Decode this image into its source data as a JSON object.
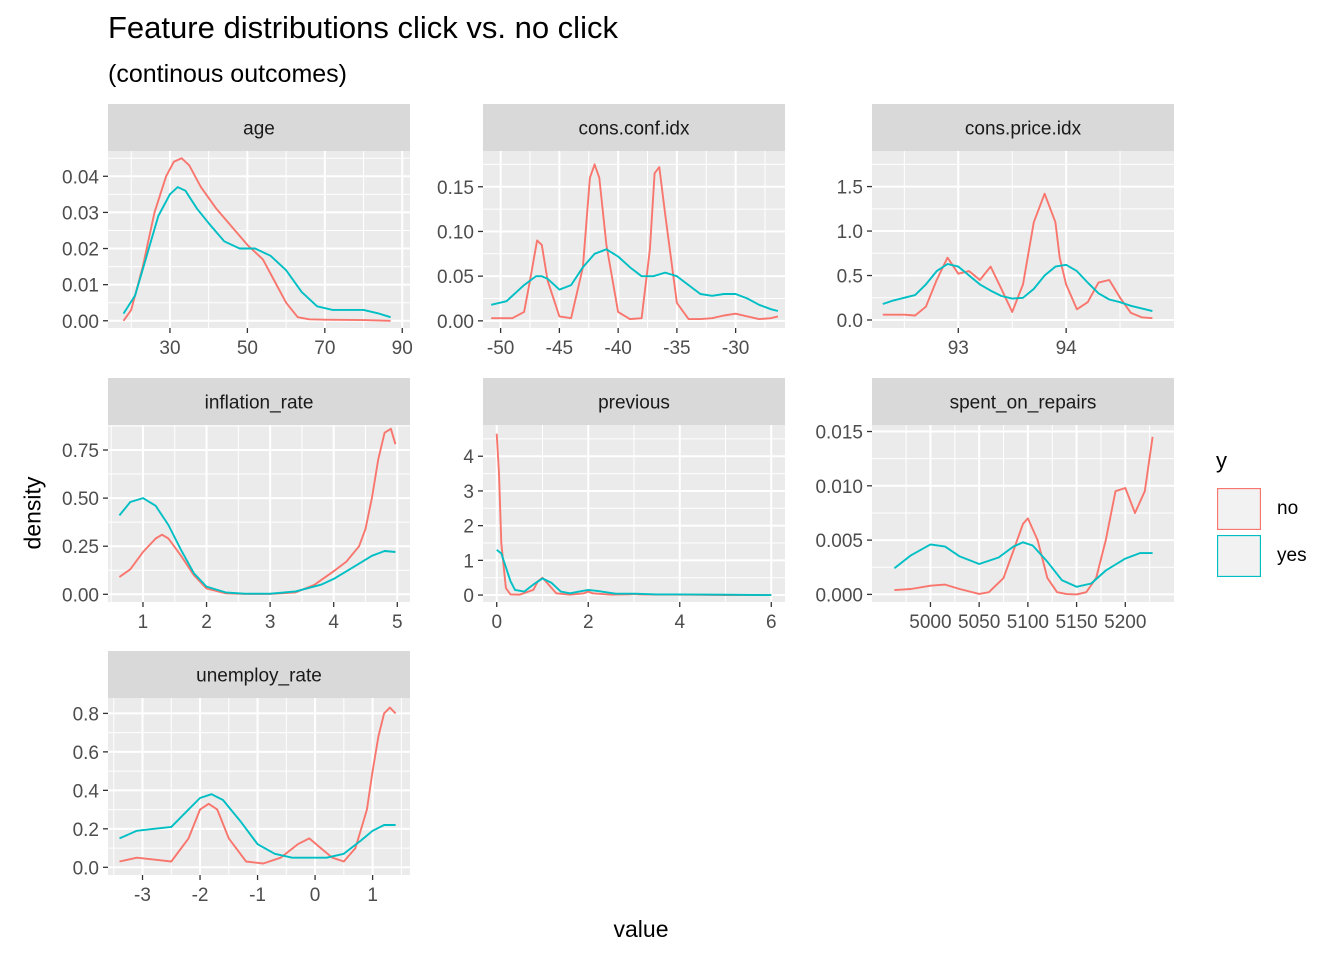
{
  "title": "Feature distributions click vs. no click",
  "subtitle": "(continous outcomes)",
  "chart_data": {
    "type": "line",
    "xlabel": "value",
    "ylabel": "density",
    "legend": {
      "title": "y",
      "position": "right",
      "entries": [
        {
          "name": "no",
          "color": "#F8766D"
        },
        {
          "name": "yes",
          "color": "#00BFC4"
        }
      ]
    },
    "grid": true,
    "facets": [
      {
        "name": "age",
        "xlim": [
          14,
          92
        ],
        "ylim": [
          -0.002,
          0.047
        ],
        "x_ticks": [
          30,
          50,
          70,
          90
        ],
        "x_tick_labels": [
          "30",
          "50",
          "70",
          "90"
        ],
        "y_ticks": [
          0,
          0.01,
          0.02,
          0.03,
          0.04
        ],
        "y_tick_labels": [
          "0.00",
          "0.01",
          "0.02",
          "0.03",
          "0.04"
        ],
        "series": [
          {
            "name": "no",
            "x": [
              18,
              20,
              23,
              26,
              29,
              31,
              33,
              35,
              38,
              42,
              46,
              50,
              54,
              57,
              60,
              63,
              66,
              70,
              80,
              87
            ],
            "y": [
              0.0,
              0.003,
              0.015,
              0.03,
              0.04,
              0.044,
              0.045,
              0.043,
              0.037,
              0.031,
              0.026,
              0.021,
              0.017,
              0.011,
              0.005,
              0.001,
              0.0004,
              0.0003,
              0.0002,
              0.0
            ]
          },
          {
            "name": "yes",
            "x": [
              18,
              21,
              24,
              27,
              30,
              32,
              34,
              37,
              40,
              44,
              48,
              52,
              56,
              60,
              64,
              68,
              72,
              76,
              80,
              84,
              87
            ],
            "y": [
              0.002,
              0.007,
              0.018,
              0.029,
              0.035,
              0.037,
              0.036,
              0.031,
              0.027,
              0.022,
              0.02,
              0.02,
              0.018,
              0.014,
              0.008,
              0.004,
              0.003,
              0.003,
              0.003,
              0.002,
              0.001
            ]
          }
        ]
      },
      {
        "name": "cons.conf.idx",
        "xlim": [
          -51.5,
          -25.8
        ],
        "ylim": [
          -0.008,
          0.19
        ],
        "x_ticks": [
          -50,
          -45,
          -40,
          -35,
          -30
        ],
        "x_tick_labels": [
          "-50",
          "-45",
          "-40",
          "-35",
          "-30"
        ],
        "y_ticks": [
          0,
          0.05,
          0.1,
          0.15
        ],
        "y_tick_labels": [
          "0.00",
          "0.05",
          "0.10",
          "0.15"
        ],
        "series": [
          {
            "name": "no",
            "x": [
              -50.8,
              -49,
              -48,
              -47.5,
              -46.9,
              -46.5,
              -46,
              -45,
              -44,
              -43,
              -42.4,
              -42,
              -41.6,
              -41,
              -40,
              -39,
              -38,
              -37.3,
              -36.9,
              -36.5,
              -36,
              -35,
              -34,
              -33,
              -32,
              -31,
              -30,
              -29,
              -28,
              -27,
              -26.4
            ],
            "y": [
              0.003,
              0.003,
              0.01,
              0.045,
              0.09,
              0.085,
              0.045,
              0.005,
              0.003,
              0.06,
              0.16,
              0.175,
              0.16,
              0.085,
              0.01,
              0.002,
              0.003,
              0.08,
              0.165,
              0.172,
              0.12,
              0.02,
              0.002,
              0.002,
              0.003,
              0.006,
              0.008,
              0.005,
              0.002,
              0.003,
              0.005
            ]
          },
          {
            "name": "yes",
            "x": [
              -50.8,
              -49.5,
              -48,
              -47,
              -46.5,
              -46,
              -45,
              -44,
              -43,
              -42,
              -41,
              -40,
              -39,
              -38,
              -37,
              -36,
              -35,
              -34,
              -33,
              -32,
              -31,
              -30,
              -29,
              -28,
              -27,
              -26.4
            ],
            "y": [
              0.018,
              0.022,
              0.04,
              0.05,
              0.05,
              0.047,
              0.035,
              0.04,
              0.06,
              0.075,
              0.08,
              0.072,
              0.06,
              0.05,
              0.05,
              0.054,
              0.05,
              0.04,
              0.03,
              0.028,
              0.03,
              0.03,
              0.025,
              0.018,
              0.013,
              0.011
            ]
          }
        ]
      },
      {
        "name": "cons.price.idx",
        "xlim": [
          92.2,
          95.0
        ],
        "ylim": [
          -0.09,
          1.9
        ],
        "x_ticks": [
          93,
          94
        ],
        "x_tick_labels": [
          "93",
          "94"
        ],
        "y_ticks": [
          0,
          0.5,
          1.0,
          1.5
        ],
        "y_tick_labels": [
          "0.0",
          "0.5",
          "1.0",
          "1.5"
        ],
        "series": [
          {
            "name": "no",
            "x": [
              92.3,
              92.5,
              92.6,
              92.7,
              92.8,
              92.9,
              93.0,
              93.1,
              93.2,
              93.3,
              93.4,
              93.5,
              93.6,
              93.7,
              93.8,
              93.9,
              93.94,
              94.0,
              94.1,
              94.2,
              94.3,
              94.4,
              94.5,
              94.6,
              94.7,
              94.8
            ],
            "y": [
              0.06,
              0.06,
              0.05,
              0.15,
              0.45,
              0.7,
              0.52,
              0.55,
              0.45,
              0.6,
              0.35,
              0.09,
              0.4,
              1.1,
              1.42,
              1.1,
              0.7,
              0.4,
              0.12,
              0.2,
              0.42,
              0.45,
              0.25,
              0.08,
              0.03,
              0.02
            ]
          },
          {
            "name": "yes",
            "x": [
              92.3,
              92.4,
              92.6,
              92.7,
              92.8,
              92.9,
              93.0,
              93.1,
              93.2,
              93.3,
              93.4,
              93.5,
              93.6,
              93.7,
              93.8,
              93.9,
              94.0,
              94.1,
              94.2,
              94.3,
              94.4,
              94.5,
              94.6,
              94.7,
              94.8
            ],
            "y": [
              0.18,
              0.22,
              0.28,
              0.4,
              0.55,
              0.63,
              0.6,
              0.5,
              0.4,
              0.33,
              0.27,
              0.24,
              0.25,
              0.35,
              0.5,
              0.6,
              0.62,
              0.55,
              0.42,
              0.3,
              0.23,
              0.2,
              0.16,
              0.13,
              0.1
            ]
          }
        ]
      },
      {
        "name": "inflation_rate",
        "xlim": [
          0.45,
          5.2
        ],
        "ylim": [
          -0.04,
          0.88
        ],
        "x_ticks": [
          1,
          2,
          3,
          4,
          5
        ],
        "x_tick_labels": [
          "1",
          "2",
          "3",
          "4",
          "5"
        ],
        "y_ticks": [
          0,
          0.25,
          0.5,
          0.75
        ],
        "y_tick_labels": [
          "0.00",
          "0.25",
          "0.50",
          "0.75"
        ],
        "series": [
          {
            "name": "no",
            "x": [
              0.63,
              0.8,
              1.0,
              1.2,
              1.3,
              1.4,
              1.6,
              1.8,
              2.0,
              2.3,
              2.6,
              3.0,
              3.4,
              3.7,
              4.0,
              4.2,
              4.4,
              4.5,
              4.6,
              4.7,
              4.8,
              4.9,
              4.97
            ],
            "y": [
              0.09,
              0.13,
              0.22,
              0.29,
              0.31,
              0.29,
              0.2,
              0.1,
              0.03,
              0.005,
              0.002,
              0.002,
              0.01,
              0.05,
              0.12,
              0.17,
              0.25,
              0.34,
              0.5,
              0.7,
              0.84,
              0.86,
              0.78
            ]
          },
          {
            "name": "yes",
            "x": [
              0.63,
              0.8,
              1.0,
              1.2,
              1.4,
              1.6,
              1.8,
              2.0,
              2.3,
              2.6,
              3.0,
              3.4,
              3.8,
              4.0,
              4.3,
              4.6,
              4.8,
              4.97
            ],
            "y": [
              0.41,
              0.48,
              0.5,
              0.46,
              0.36,
              0.23,
              0.11,
              0.04,
              0.01,
              0.003,
              0.003,
              0.015,
              0.05,
              0.08,
              0.14,
              0.2,
              0.225,
              0.22
            ]
          }
        ]
      },
      {
        "name": "previous",
        "xlim": [
          -0.3,
          6.3
        ],
        "ylim": [
          -0.2,
          4.9
        ],
        "x_ticks": [
          0,
          2,
          4,
          6
        ],
        "x_tick_labels": [
          "0",
          "2",
          "4",
          "6"
        ],
        "y_ticks": [
          0,
          1,
          2,
          3,
          4
        ],
        "y_tick_labels": [
          "0",
          "1",
          "2",
          "3",
          "4"
        ],
        "series": [
          {
            "name": "no",
            "x": [
              0,
              0.05,
              0.1,
              0.2,
              0.3,
              0.5,
              0.8,
              0.9,
              1.0,
              1.1,
              1.3,
              1.6,
              1.9,
              2.0,
              2.1,
              2.5,
              2.9,
              3.0,
              3.1,
              3.5,
              4,
              5,
              6
            ],
            "y": [
              4.65,
              3.5,
              1.5,
              0.2,
              0.02,
              0.01,
              0.15,
              0.4,
              0.5,
              0.35,
              0.05,
              0.01,
              0.05,
              0.1,
              0.05,
              0.01,
              0.02,
              0.03,
              0.02,
              0.01,
              0.01,
              0.0,
              0.0
            ]
          },
          {
            "name": "yes",
            "x": [
              0,
              0.1,
              0.2,
              0.3,
              0.4,
              0.6,
              0.8,
              1.0,
              1.2,
              1.4,
              1.6,
              1.8,
              2.0,
              2.2,
              2.6,
              3.0,
              3.5,
              4,
              5,
              6
            ],
            "y": [
              1.3,
              1.2,
              0.8,
              0.4,
              0.15,
              0.1,
              0.3,
              0.48,
              0.35,
              0.1,
              0.05,
              0.1,
              0.15,
              0.12,
              0.04,
              0.04,
              0.02,
              0.02,
              0.01,
              0.0
            ]
          }
        ]
      },
      {
        "name": "spent_on_repairs",
        "xlim": [
          4940,
          5250
        ],
        "ylim": [
          -0.0007,
          0.0156
        ],
        "x_ticks": [
          5000,
          5050,
          5100,
          5150,
          5200
        ],
        "x_tick_labels": [
          "5000",
          "5050",
          "5100",
          "5150",
          "5200"
        ],
        "y_ticks": [
          0,
          0.005,
          0.01,
          0.015
        ],
        "y_tick_labels": [
          "0.000",
          "0.005",
          "0.010",
          "0.015"
        ],
        "series": [
          {
            "name": "no",
            "x": [
              4963,
              4980,
              5000,
              5015,
              5030,
              5050,
              5060,
              5075,
              5085,
              5095,
              5100,
              5110,
              5120,
              5130,
              5140,
              5150,
              5160,
              5170,
              5180,
              5190,
              5200,
              5210,
              5220,
              5228
            ],
            "y": [
              0.0004,
              0.0005,
              0.0008,
              0.0009,
              0.0005,
              5e-05,
              0.0002,
              0.0015,
              0.004,
              0.0065,
              0.007,
              0.005,
              0.0015,
              0.0002,
              3e-05,
              0.0,
              0.0002,
              0.0015,
              0.005,
              0.0095,
              0.0098,
              0.0075,
              0.0095,
              0.0145
            ]
          },
          {
            "name": "yes",
            "x": [
              4963,
              4980,
              5000,
              5015,
              5030,
              5050,
              5070,
              5085,
              5095,
              5105,
              5120,
              5135,
              5150,
              5165,
              5180,
              5200,
              5215,
              5228
            ],
            "y": [
              0.0024,
              0.0036,
              0.0046,
              0.0044,
              0.0035,
              0.0028,
              0.0034,
              0.0044,
              0.0048,
              0.0045,
              0.003,
              0.0013,
              0.0007,
              0.001,
              0.0022,
              0.0033,
              0.0038,
              0.0038
            ]
          }
        ]
      },
      {
        "name": "unemploy_rate",
        "xlim": [
          -3.6,
          1.65
        ],
        "ylim": [
          -0.04,
          0.88
        ],
        "x_ticks": [
          -3,
          -2,
          -1,
          0,
          1
        ],
        "x_tick_labels": [
          "-3",
          "-2",
          "-1",
          "0",
          "1"
        ],
        "y_ticks": [
          0,
          0.2,
          0.4,
          0.6,
          0.8
        ],
        "y_tick_labels": [
          "0.0",
          "0.2",
          "0.4",
          "0.6",
          "0.8"
        ],
        "series": [
          {
            "name": "no",
            "x": [
              -3.4,
              -3.1,
              -2.8,
              -2.5,
              -2.2,
              -2.0,
              -1.85,
              -1.7,
              -1.5,
              -1.2,
              -0.9,
              -0.6,
              -0.3,
              -0.1,
              0.1,
              0.3,
              0.5,
              0.7,
              0.9,
              1.0,
              1.1,
              1.2,
              1.3,
              1.4
            ],
            "y": [
              0.03,
              0.05,
              0.04,
              0.03,
              0.15,
              0.3,
              0.33,
              0.3,
              0.15,
              0.03,
              0.02,
              0.05,
              0.12,
              0.15,
              0.1,
              0.05,
              0.03,
              0.1,
              0.3,
              0.5,
              0.68,
              0.8,
              0.83,
              0.8
            ]
          },
          {
            "name": "yes",
            "x": [
              -3.4,
              -3.1,
              -2.8,
              -2.5,
              -2.2,
              -2.0,
              -1.8,
              -1.6,
              -1.3,
              -1.0,
              -0.7,
              -0.4,
              -0.1,
              0.2,
              0.5,
              0.8,
              1.0,
              1.2,
              1.4
            ],
            "y": [
              0.15,
              0.19,
              0.2,
              0.21,
              0.3,
              0.36,
              0.38,
              0.35,
              0.24,
              0.12,
              0.07,
              0.05,
              0.05,
              0.05,
              0.07,
              0.14,
              0.19,
              0.22,
              0.22
            ]
          }
        ]
      }
    ]
  }
}
